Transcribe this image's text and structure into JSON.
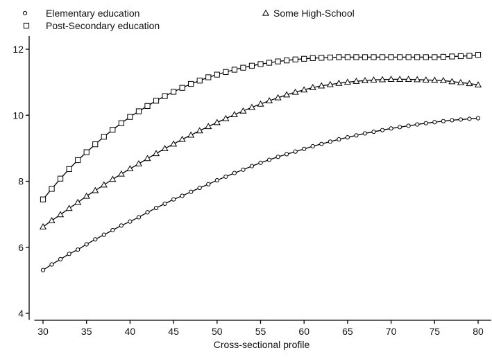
{
  "chart_data": {
    "type": "line",
    "title": "",
    "xlabel": "Cross-sectional profile",
    "ylabel": "",
    "xlim": [
      29,
      81.5
    ],
    "ylim": [
      3.8,
      12.4
    ],
    "xticks": [
      30,
      35,
      40,
      45,
      50,
      55,
      60,
      65,
      70,
      75,
      80
    ],
    "yticks": [
      4,
      6,
      8,
      10,
      12
    ],
    "grid": false,
    "legend_position": "top-left",
    "x": [
      30,
      31,
      32,
      33,
      34,
      35,
      36,
      37,
      38,
      39,
      40,
      41,
      42,
      43,
      44,
      45,
      46,
      47,
      48,
      49,
      50,
      51,
      52,
      53,
      54,
      55,
      56,
      57,
      58,
      59,
      60,
      61,
      62,
      63,
      64,
      65,
      66,
      67,
      68,
      69,
      70,
      71,
      72,
      73,
      74,
      75,
      76,
      77,
      78,
      79,
      80
    ],
    "series": [
      {
        "name": "Elementary education",
        "marker": "circle",
        "values": [
          5.31,
          5.48,
          5.64,
          5.8,
          5.93,
          6.09,
          6.24,
          6.38,
          6.52,
          6.66,
          6.78,
          6.91,
          7.06,
          7.19,
          7.32,
          7.45,
          7.56,
          7.68,
          7.8,
          7.91,
          8.03,
          8.14,
          8.25,
          8.35,
          8.46,
          8.56,
          8.65,
          8.74,
          8.82,
          8.9,
          8.98,
          9.06,
          9.13,
          9.2,
          9.27,
          9.33,
          9.39,
          9.45,
          9.5,
          9.55,
          9.6,
          9.64,
          9.68,
          9.72,
          9.76,
          9.79,
          9.82,
          9.85,
          9.87,
          9.89,
          9.91
        ]
      },
      {
        "name": "Some High-School",
        "marker": "triangle",
        "values": [
          6.62,
          6.81,
          6.99,
          7.18,
          7.36,
          7.55,
          7.72,
          7.89,
          8.06,
          8.22,
          8.38,
          8.53,
          8.69,
          8.84,
          8.99,
          9.13,
          9.27,
          9.4,
          9.53,
          9.66,
          9.78,
          9.9,
          10.02,
          10.13,
          10.24,
          10.34,
          10.44,
          10.53,
          10.62,
          10.7,
          10.77,
          10.84,
          10.89,
          10.93,
          10.97,
          11.0,
          11.03,
          11.05,
          11.07,
          11.08,
          11.09,
          11.09,
          11.09,
          11.08,
          11.07,
          11.06,
          11.05,
          11.02,
          10.99,
          10.96,
          10.92
        ]
      },
      {
        "name": "Post-Secondary education",
        "marker": "square",
        "values": [
          7.45,
          7.77,
          8.08,
          8.37,
          8.64,
          8.88,
          9.12,
          9.35,
          9.56,
          9.76,
          9.95,
          10.12,
          10.28,
          10.44,
          10.58,
          10.71,
          10.83,
          10.95,
          11.05,
          11.15,
          11.23,
          11.31,
          11.38,
          11.44,
          11.5,
          11.55,
          11.59,
          11.63,
          11.66,
          11.69,
          11.71,
          11.73,
          11.74,
          11.75,
          11.76,
          11.76,
          11.76,
          11.76,
          11.76,
          11.76,
          11.76,
          11.76,
          11.76,
          11.76,
          11.76,
          11.76,
          11.77,
          11.78,
          11.79,
          11.8,
          11.83
        ]
      }
    ]
  }
}
